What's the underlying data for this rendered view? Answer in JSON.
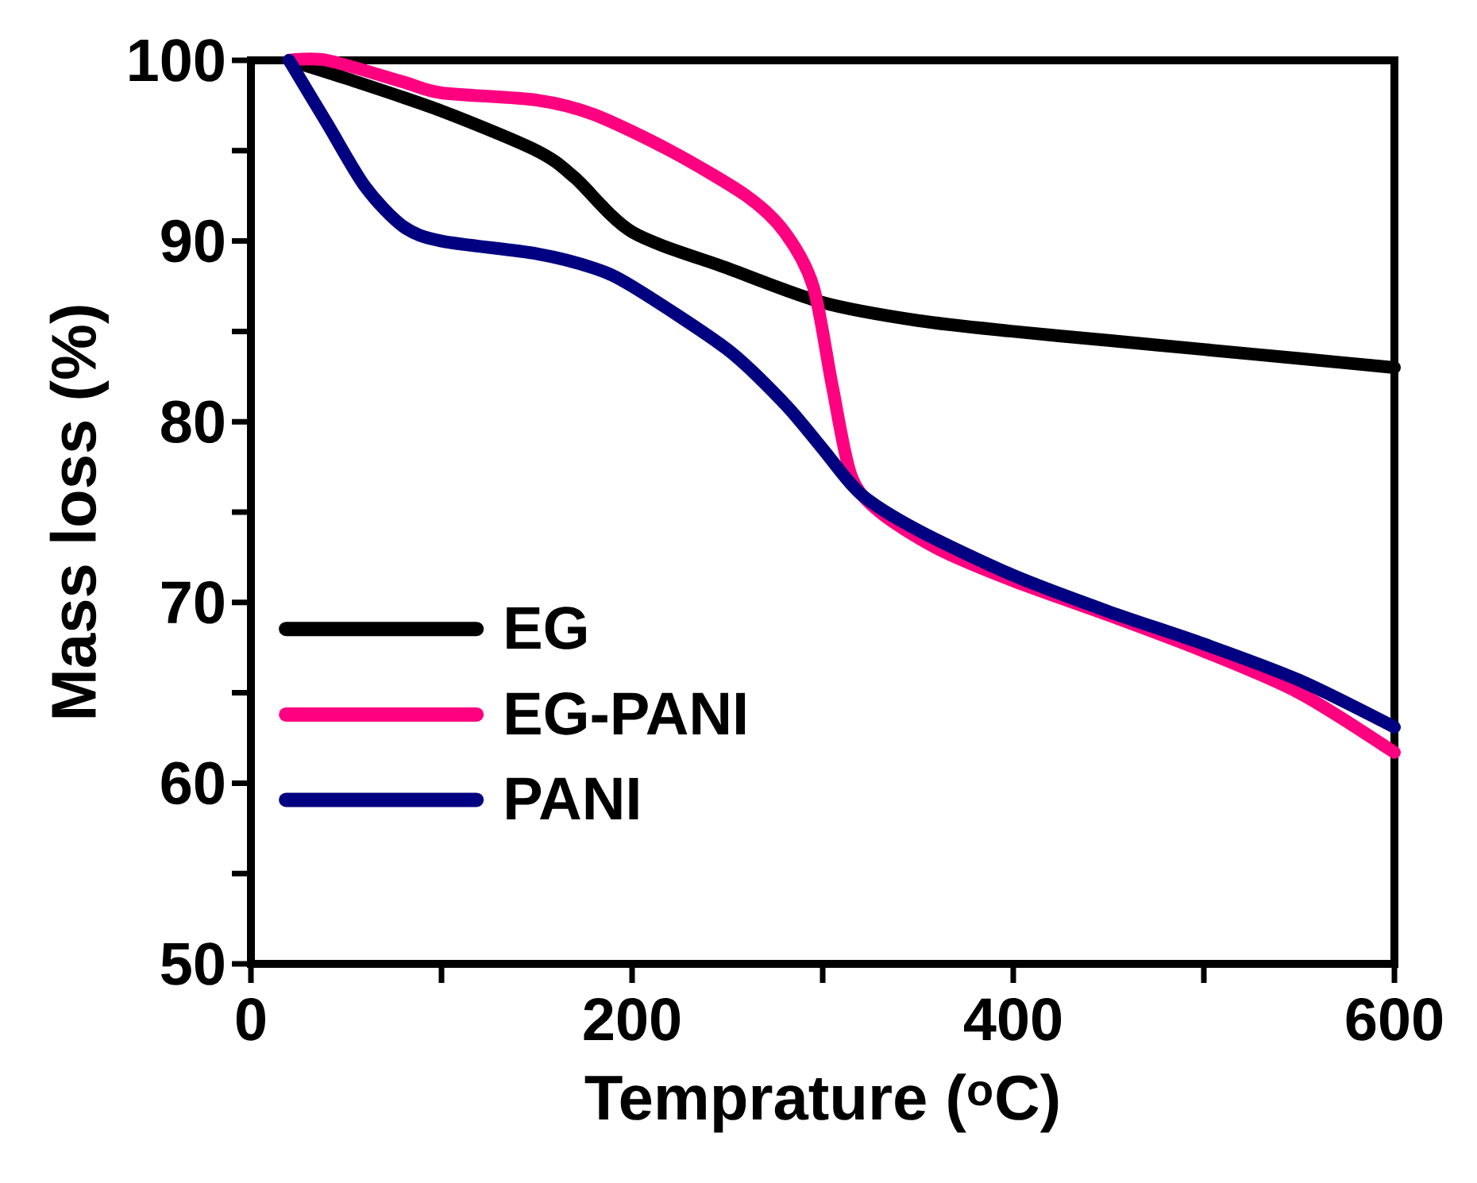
{
  "chart_data": {
    "type": "line",
    "xlabel": "Temprature ($^{o}$C)",
    "ylabel": "Mass loss (%)",
    "xlim": [
      0,
      600
    ],
    "ylim": [
      50,
      100
    ],
    "xticks": [
      0,
      {
        "value": 100,
        "label": null
      },
      200,
      {
        "value": 300,
        "label": null
      },
      400,
      {
        "value": 500,
        "label": null
      },
      600
    ],
    "yticks": [
      50,
      {
        "value": 55,
        "label": null
      },
      60,
      {
        "value": 65,
        "label": null
      },
      70,
      {
        "value": 75,
        "label": null
      },
      80,
      {
        "value": 85,
        "label": null
      },
      90,
      {
        "value": 95,
        "label": null
      },
      100
    ],
    "legend": "bottom left",
    "marker": "none",
    "line_style": "solid",
    "series": [
      {
        "name": "EG",
        "color": "#000000",
        "x": [
          20,
          50,
          100,
          150,
          170,
          200,
          250,
          300,
          350,
          400,
          450,
          500,
          550,
          600
        ],
        "values": [
          100,
          99,
          97.2,
          95,
          93.5,
          90.5,
          88.5,
          86.6,
          85.6,
          85,
          84.5,
          84,
          83.5,
          83
        ]
      },
      {
        "name": "EG-PANI",
        "color": "#ff0080",
        "x": [
          20,
          40,
          80,
          100,
          150,
          180,
          220,
          260,
          280,
          295,
          305,
          315,
          330,
          360,
          400,
          450,
          500,
          550,
          600
        ],
        "values": [
          100,
          100,
          98.8,
          98.2,
          97.8,
          97,
          95,
          92.5,
          90.5,
          87.5,
          82,
          77,
          75,
          73,
          71.2,
          69.3,
          67.3,
          65,
          61.7
        ]
      },
      {
        "name": "PANI",
        "color": "#000080",
        "x": [
          20,
          40,
          60,
          80,
          100,
          150,
          180,
          200,
          250,
          280,
          300,
          320,
          350,
          400,
          450,
          500,
          550,
          600
        ],
        "values": [
          100,
          96.5,
          93,
          90.8,
          90,
          89.3,
          88.5,
          87.5,
          84,
          81,
          78.5,
          76,
          74,
          71.5,
          69.5,
          67.7,
          65.7,
          63.1
        ]
      }
    ]
  }
}
